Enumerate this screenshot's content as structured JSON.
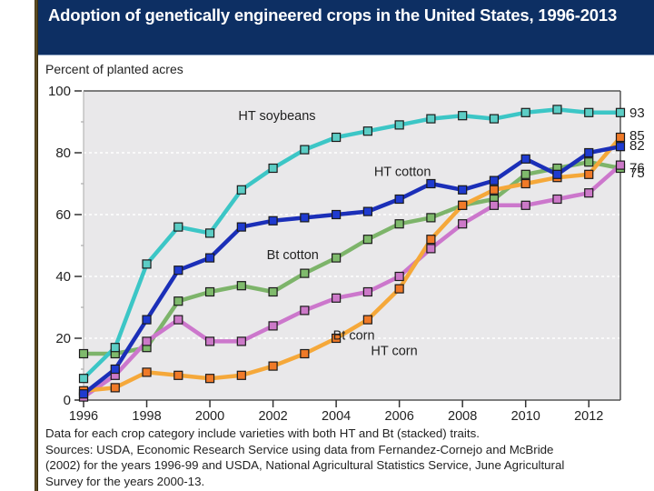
{
  "header": {
    "title": "Adoption of genetically engineered crops in the United States, 1996-2013"
  },
  "notes": [
    "Data for each crop category include varieties with both HT and Bt (stacked) traits.",
    "Sources: USDA, Economic Research Service using data from Fernandez-Cornejo and McBride",
    "(2002) for the years 1996-99 and USDA, National Agricultural Statistics Service, June Agricultural",
    "Survey for the years 2000-13."
  ],
  "chart_data": {
    "type": "line",
    "title": "Adoption of genetically engineered crops in the United States, 1996-2013",
    "xlabel": "",
    "ylabel": "Percent of planted acres",
    "xlim": [
      1996,
      2013
    ],
    "ylim": [
      0,
      100
    ],
    "x": [
      1996,
      1997,
      1998,
      1999,
      2000,
      2001,
      2002,
      2003,
      2004,
      2005,
      2006,
      2007,
      2008,
      2009,
      2010,
      2011,
      2012,
      2013
    ],
    "x_ticks": [
      1996,
      1998,
      2000,
      2002,
      2004,
      2006,
      2008,
      2010,
      2012
    ],
    "y_ticks": [
      0,
      20,
      40,
      60,
      80,
      100
    ],
    "grid": "horizontal dotted at 20,40,60,80",
    "legend": "inline labels on lines; end values at right",
    "series": [
      {
        "name": "HT soybeans",
        "color": "#3cc6c6",
        "marker": "#5ccdc5",
        "label_pos": {
          "x": 2000.9,
          "y": 92
        },
        "end_label": "93",
        "values": [
          7,
          17,
          44,
          56,
          54,
          68,
          75,
          81,
          85,
          87,
          89,
          91,
          92,
          91,
          93,
          94,
          93,
          93
        ]
      },
      {
        "name": "HT cotton",
        "color": "#1b2fb8",
        "marker": "#1f3bd0",
        "label_pos": {
          "x": 2005.2,
          "y": 74
        },
        "end_label": "82",
        "values": [
          2,
          10,
          26,
          42,
          46,
          56,
          58,
          59,
          60,
          61,
          65,
          70,
          68,
          71,
          78,
          73,
          80,
          82
        ]
      },
      {
        "name": "Bt cotton",
        "color": "#7db46a",
        "marker": "#7fba6c",
        "label_pos": {
          "x": 2001.8,
          "y": 47
        },
        "end_label": "75",
        "values": [
          15,
          15,
          17,
          32,
          35,
          37,
          35,
          41,
          46,
          52,
          57,
          59,
          63,
          65,
          73,
          75,
          77,
          75
        ]
      },
      {
        "name": "Bt corn",
        "color": "#cc77cc",
        "marker": "#cc79c8",
        "label_pos": {
          "x": 2003.9,
          "y": 21
        },
        "end_label": "76",
        "values": [
          1,
          8,
          19,
          26,
          19,
          19,
          24,
          29,
          33,
          35,
          40,
          49,
          57,
          63,
          63,
          65,
          67,
          76
        ]
      },
      {
        "name": "HT corn",
        "color": "#f5a83a",
        "marker": "#f07a28",
        "label_pos": {
          "x": 2005.1,
          "y": 16
        },
        "end_label": "85",
        "values": [
          3,
          4,
          9,
          8,
          7,
          8,
          11,
          15,
          20,
          26,
          36,
          52,
          63,
          68,
          70,
          72,
          73,
          85
        ]
      }
    ]
  }
}
